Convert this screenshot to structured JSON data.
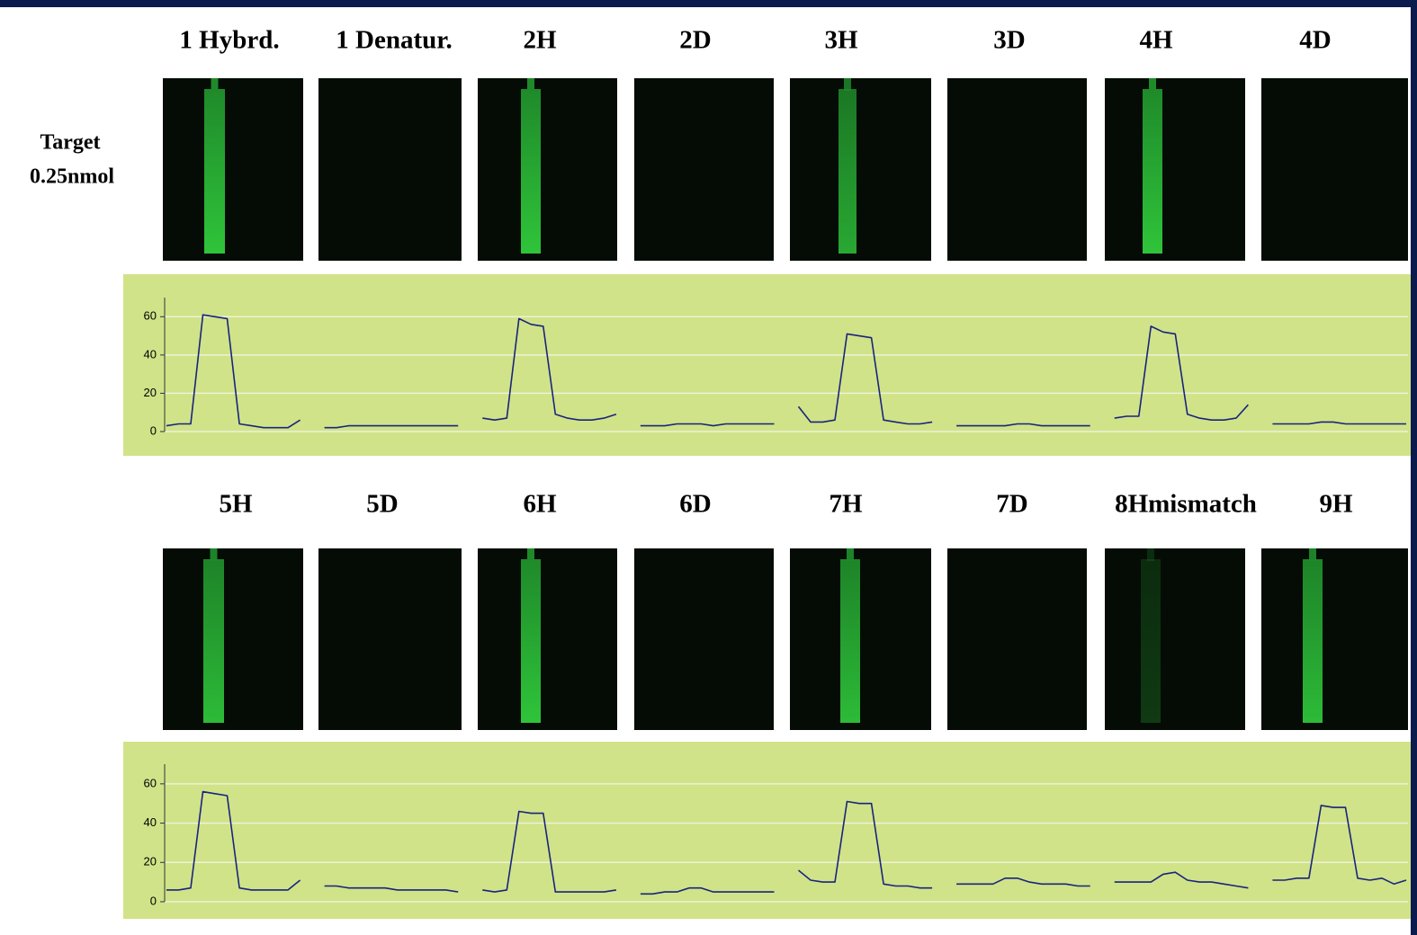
{
  "labels_row1": [
    "1 Hybrd.",
    "1 Denatur.",
    "2H",
    "2D",
    "3H",
    "3D",
    "4H",
    "4D"
  ],
  "side_label": [
    "Target",
    "0.25nmol"
  ],
  "labels_row2": [
    "5H",
    "5D",
    "6H",
    "6D",
    "7H",
    "7D",
    "8Hmismatch",
    "9H"
  ],
  "chart_data": [
    {
      "type": "line",
      "ylim": [
        0,
        70
      ],
      "yticks": [
        0,
        20,
        40,
        60
      ],
      "grid": true,
      "series": [
        {
          "color": "#1a237e",
          "values": [
            3,
            4,
            4,
            61,
            60,
            59,
            4,
            3,
            2,
            2,
            2,
            6,
            null,
            2,
            2,
            3,
            3,
            3,
            3,
            3,
            3,
            3,
            3,
            3,
            3,
            null,
            7,
            6,
            7,
            59,
            56,
            55,
            9,
            7,
            6,
            6,
            7,
            9,
            null,
            3,
            3,
            3,
            4,
            4,
            4,
            3,
            4,
            4,
            4,
            4,
            4,
            null,
            13,
            5,
            5,
            6,
            51,
            50,
            49,
            6,
            5,
            4,
            4,
            5,
            null,
            3,
            3,
            3,
            3,
            3,
            4,
            4,
            3,
            3,
            3,
            3,
            3,
            null,
            7,
            8,
            8,
            55,
            52,
            51,
            9,
            7,
            6,
            6,
            7,
            14,
            null,
            4,
            4,
            4,
            4,
            5,
            5,
            4,
            4,
            4,
            4,
            4,
            4
          ]
        }
      ]
    },
    {
      "type": "line",
      "ylim": [
        0,
        70
      ],
      "yticks": [
        0,
        20,
        40,
        60
      ],
      "grid": true,
      "series": [
        {
          "color": "#1a237e",
          "values": [
            6,
            6,
            7,
            56,
            55,
            54,
            7,
            6,
            6,
            6,
            6,
            11,
            null,
            8,
            8,
            7,
            7,
            7,
            7,
            6,
            6,
            6,
            6,
            6,
            5,
            null,
            6,
            5,
            6,
            46,
            45,
            45,
            5,
            5,
            5,
            5,
            5,
            6,
            null,
            4,
            4,
            5,
            5,
            7,
            7,
            5,
            5,
            5,
            5,
            5,
            5,
            null,
            16,
            11,
            10,
            10,
            51,
            50,
            50,
            9,
            8,
            8,
            7,
            7,
            null,
            9,
            9,
            9,
            9,
            12,
            12,
            10,
            9,
            9,
            9,
            8,
            8,
            null,
            10,
            10,
            10,
            10,
            14,
            15,
            11,
            10,
            10,
            9,
            8,
            7,
            null,
            11,
            11,
            12,
            12,
            49,
            48,
            48,
            12,
            11,
            12,
            9,
            11
          ]
        }
      ]
    }
  ]
}
